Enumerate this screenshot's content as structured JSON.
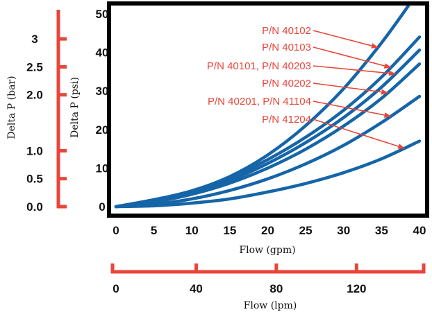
{
  "chart_data": {
    "type": "line",
    "xlabel": "Flow (gpm)",
    "ylabel": "Delta P (psi)",
    "x_ticks": [
      0,
      5,
      10,
      15,
      20,
      25,
      30,
      35,
      40
    ],
    "y_ticks": [
      0,
      10,
      20,
      30,
      40,
      50
    ],
    "xlim": [
      0,
      40
    ],
    "ylim": [
      0,
      52
    ],
    "grid": false,
    "colors": {
      "curve": "#1565a8",
      "annotation": "#e8463a",
      "frame": "#000000",
      "scale": "#e8463a"
    },
    "series": [
      {
        "name": "P/N 40102",
        "x": [
          0,
          5,
          10,
          15,
          20,
          25,
          30,
          35,
          38.5
        ],
        "y": [
          0,
          1.8,
          4.1,
          7.8,
          13.4,
          21.0,
          30.6,
          42.5,
          52
        ]
      },
      {
        "name": "P/N 40103",
        "x": [
          0,
          5,
          10,
          15,
          20,
          25,
          30,
          35,
          40
        ],
        "y": [
          0,
          1.5,
          3.9,
          7.4,
          12.2,
          18.0,
          25.0,
          33.6,
          44.0
        ]
      },
      {
        "name": "P/N 40101, P/N 40203",
        "x": [
          0,
          5,
          10,
          15,
          20,
          25,
          30,
          35,
          40
        ],
        "y": [
          0,
          1.4,
          3.6,
          6.8,
          11.2,
          16.6,
          23.1,
          31.0,
          40.6
        ]
      },
      {
        "name": "P/N 40202",
        "x": [
          0,
          5,
          10,
          15,
          20,
          25,
          30,
          35,
          40
        ],
        "y": [
          0,
          1.2,
          3.2,
          6.1,
          10.0,
          14.9,
          20.9,
          28.1,
          37.0
        ]
      },
      {
        "name": "P/N 40201, P/N 41104",
        "x": [
          0,
          5,
          10,
          15,
          20,
          25,
          30,
          35,
          40
        ],
        "y": [
          0,
          0.6,
          2.0,
          4.2,
          7.2,
          11.1,
          15.9,
          21.8,
          28.6
        ]
      },
      {
        "name": "P/N 41204",
        "x": [
          0,
          5,
          10,
          15,
          20,
          25,
          30,
          35,
          40
        ],
        "y": [
          0,
          0.2,
          0.9,
          2.0,
          3.8,
          6.0,
          8.8,
          12.4,
          17.0
        ]
      }
    ],
    "annotations": [
      {
        "text": "P/N 40102",
        "series": 0,
        "x_target": 34.5
      },
      {
        "text": "P/N 40103",
        "series": 1,
        "x_target": 36.2
      },
      {
        "text": "P/N 40101, P/N 40203",
        "series": 2,
        "x_target": 36.8
      },
      {
        "text": "P/N 40202",
        "series": 3,
        "x_target": 35.8
      },
      {
        "text": "P/N 40201, P/N 41104",
        "series": 4,
        "x_target": 36.2
      },
      {
        "text": "P/N 41204",
        "series": 5,
        "x_target": 38.0
      }
    ],
    "bar_scale": {
      "label": "Delta P (bar)",
      "ticks": [
        "3",
        "2.5",
        "2.0",
        "1.0",
        "0.5",
        "0.0"
      ],
      "values": [
        3.0,
        2.5,
        2.0,
        1.0,
        0.5,
        0.0
      ]
    },
    "lpm_scale": {
      "label": "Flow (lpm)",
      "ticks": [
        "0",
        "40",
        "80",
        "120"
      ],
      "values": [
        0,
        40,
        80,
        120
      ]
    }
  }
}
